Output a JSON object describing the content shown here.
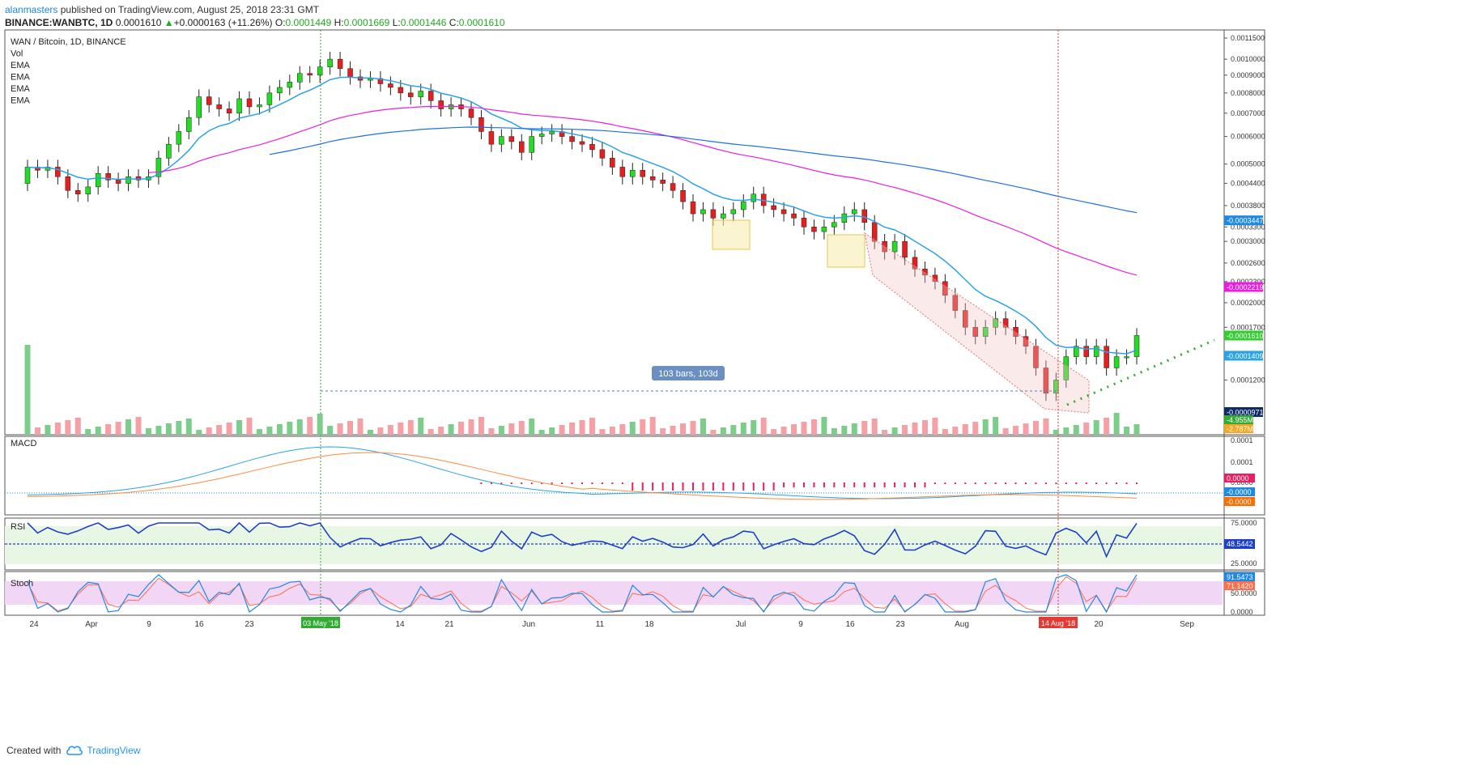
{
  "header": {
    "author": "alanmasters",
    "published": "published on TradingView.com, August 25, 2018 23:31 GMT",
    "symbol": "BINANCE:WANBTC, 1D",
    "last": "0.0001610",
    "change": "+0.0000163 (+11.26%)",
    "o_label": "O:",
    "o": "0.0001449",
    "h_label": "H:",
    "h": "0.0001669",
    "l_label": "L:",
    "l": "0.0001446",
    "c_label": "C:",
    "c": "0.0001610"
  },
  "footer": {
    "created": "Created with",
    "brand": "TradingView"
  },
  "legend": [
    "WAN / Bitcoin, 1D, BINANCE",
    "Vol",
    "EMA",
    "EMA",
    "EMA",
    "EMA"
  ],
  "panes": {
    "macd": "MACD",
    "rsi": "RSI",
    "stoch": "Stoch"
  },
  "price_axis_ticks": [
    "0.0011500",
    "0.0010000",
    "0.0009000",
    "0.0008000",
    "0.0007000",
    "0.0006000",
    "0.0005000",
    "0.0004400",
    "0.0003800",
    "0.0003300",
    "0.0003000",
    "0.0002600",
    "0.0002300",
    "0.0002000",
    "0.0001700",
    "0.0001200"
  ],
  "price_tags": [
    {
      "label": "0.0003447",
      "color": "#1e88e5",
      "value": 0.0003447
    },
    {
      "label": "0.0002219",
      "color": "#e91ee1",
      "value": 0.0002219
    },
    {
      "label": "0.0001610",
      "color": "#33cc33",
      "value": 0.000161
    },
    {
      "label": "0.0001409",
      "color": "#29a3e5",
      "value": 0.0001409
    },
    {
      "label": "0.0000971",
      "color": "#0f2a6b",
      "value": 9.71e-05
    }
  ],
  "volume_tags": [
    {
      "label": "4.955M",
      "color": "#33aa33"
    },
    {
      "label": "2.787M",
      "color": "#f5a623"
    }
  ],
  "macd_axis": [
    "0.0001",
    "0.0001",
    "0.0000",
    "-0.0000",
    "-0.0000"
  ],
  "macd_tags": [
    {
      "label": "0.0000",
      "color": "#e91e63"
    },
    {
      "label": "-0.0000",
      "color": "#1e88e5"
    },
    {
      "label": "-0.0000",
      "color": "#ff6d00"
    }
  ],
  "rsi_axis": [
    "75.0000",
    "25.0000"
  ],
  "rsi_tag": {
    "label": "48.5442",
    "color": "#1e40c8"
  },
  "stoch_axis": [
    "50.0000",
    "0.0000"
  ],
  "stoch_tags": [
    {
      "label": "91.5473",
      "color": "#1e88e5"
    },
    {
      "label": "71.1420",
      "color": "#ff6d4a"
    }
  ],
  "time_axis": [
    "24",
    "Apr",
    "9",
    "16",
    "23",
    "May",
    "14",
    "21",
    "Jun",
    "11",
    "18",
    "Jul",
    "9",
    "16",
    "23",
    "Aug",
    "20",
    "Sep"
  ],
  "time_markers": [
    {
      "label": "03 May '18",
      "color": "#33aa33"
    },
    {
      "label": "14 Aug '18",
      "color": "#e53935"
    }
  ],
  "measure_label": "103 bars, 103d",
  "chart_data": {
    "type": "candlestick",
    "title": "WAN / Bitcoin, 1D, BINANCE",
    "ylim": [
      9.71e-05,
      0.00115
    ],
    "y_scale": "log",
    "x_range": [
      "2018-03-21",
      "2018-09-05"
    ],
    "last_close": 0.000161,
    "ema_last_values": [
      0.0001409,
      0.0002219,
      0.0003447
    ],
    "candles_close_approx": [
      0.00049,
      0.00048,
      0.00049,
      0.00046,
      0.00042,
      0.00041,
      0.00043,
      0.00047,
      0.00045,
      0.00044,
      0.00046,
      0.00045,
      0.00046,
      0.00052,
      0.00057,
      0.00062,
      0.00068,
      0.00078,
      0.00074,
      0.00072,
      0.0007,
      0.00077,
      0.00073,
      0.00074,
      0.0008,
      0.00083,
      0.00086,
      0.00091,
      0.0009,
      0.00095,
      0.001,
      0.00094,
      0.00089,
      0.00087,
      0.00088,
      0.00085,
      0.00083,
      0.0008,
      0.00078,
      0.00081,
      0.00076,
      0.00072,
      0.00074,
      0.00072,
      0.00068,
      0.00062,
      0.00057,
      0.0006,
      0.00058,
      0.00054,
      0.0006,
      0.00061,
      0.00062,
      0.0006,
      0.00058,
      0.00057,
      0.00055,
      0.00052,
      0.00049,
      0.00046,
      0.00048,
      0.00046,
      0.00045,
      0.00044,
      0.00042,
      0.00039,
      0.00036,
      0.00037,
      0.00035,
      0.00036,
      0.00037,
      0.00039,
      0.00041,
      0.00038,
      0.00037,
      0.00036,
      0.00035,
      0.00033,
      0.00032,
      0.00033,
      0.00034,
      0.00036,
      0.00037,
      0.00034,
      0.0003,
      0.00028,
      0.0003,
      0.00027,
      0.00025,
      0.00024,
      0.00023,
      0.00021,
      0.00019,
      0.00017,
      0.00016,
      0.00017,
      0.00018,
      0.00017,
      0.00016,
      0.00015,
      0.00013,
      0.00011,
      0.00012,
      0.00014,
      0.00015,
      0.00014,
      0.00015,
      0.00013,
      0.00014,
      0.00014,
      0.000161
    ]
  }
}
